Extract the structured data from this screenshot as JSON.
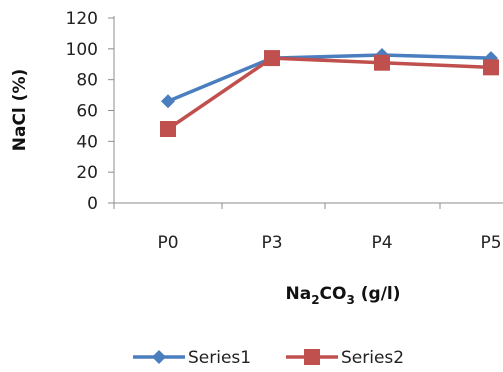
{
  "chart_data": {
    "type": "line",
    "categories": [
      "P0",
      "P3",
      "P4",
      "P5"
    ],
    "series": [
      {
        "name": "Series1",
        "values": [
          66,
          94,
          96,
          94
        ],
        "color": "#4a7ebf",
        "marker": "diamond"
      },
      {
        "name": "Series2",
        "values": [
          48,
          94,
          91,
          88
        ],
        "color": "#c0504d",
        "marker": "square"
      }
    ],
    "ylim": [
      0,
      120
    ],
    "yticks": [
      "0",
      "20",
      "40",
      "60",
      "80",
      "100",
      "120"
    ],
    "ylabel": "NaCl (%)",
    "xlabel": {
      "pre": "Na",
      "sub1": "2",
      "mid": "CO",
      "sub2": "3",
      "post": " (g/l)"
    },
    "grid": false,
    "legend_position": "bottom"
  }
}
